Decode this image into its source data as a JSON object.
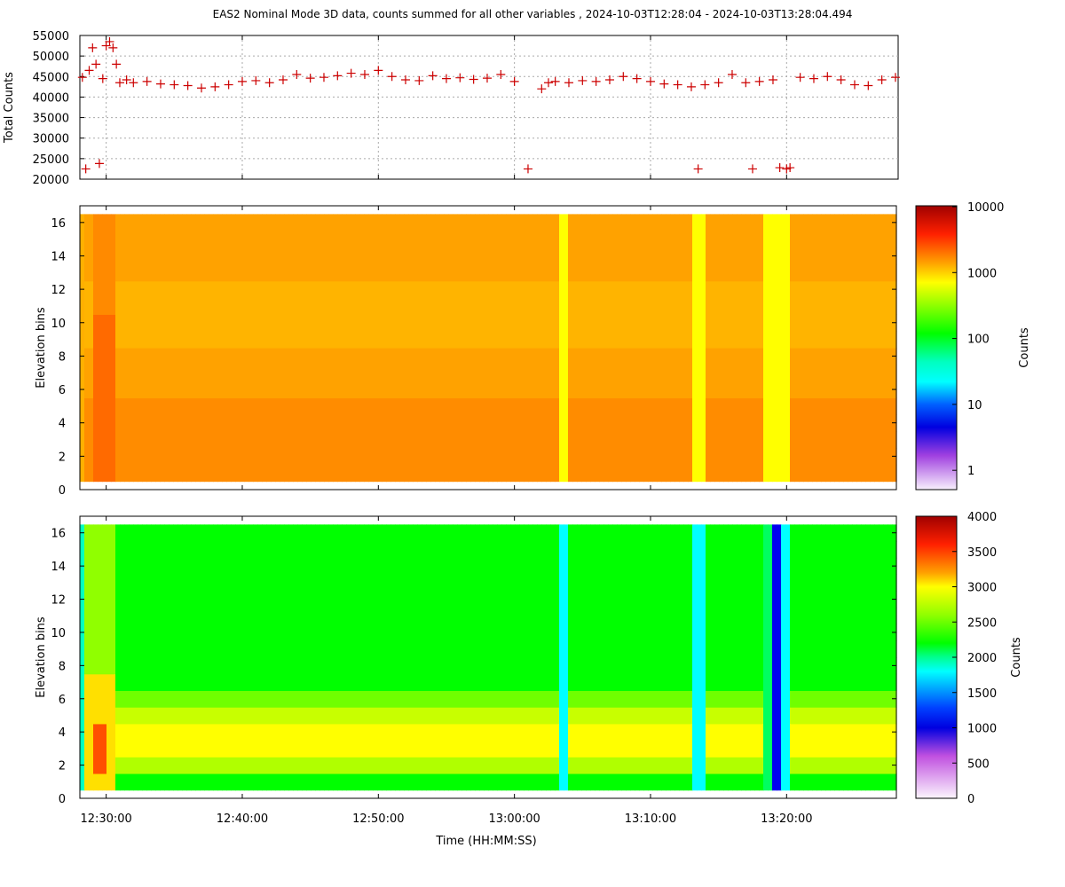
{
  "title": "EAS2  Nominal Mode 3D data, counts summed for all other variables ,  2024-10-03T12:28:04 - 2024-10-03T13:28:04.494",
  "xlabel": "Time (HH:MM:SS)",
  "x_ticks": [
    "12:30:00",
    "12:40:00",
    "12:50:00",
    "13:00:00",
    "13:10:00",
    "13:20:00"
  ],
  "chart_data": [
    {
      "type": "scatter",
      "ylabel": "Total Counts",
      "ylim": [
        20000,
        55000
      ],
      "y_ticks": [
        "55000",
        "50000",
        "45000",
        "40000",
        "35000",
        "30000",
        "25000",
        "20000"
      ],
      "grid": true,
      "marker": "+",
      "color": "#cc0000",
      "x": [
        "12:28:15",
        "12:28:30",
        "12:28:45",
        "12:29:00",
        "12:29:15",
        "12:29:30",
        "12:29:45",
        "12:30:00",
        "12:30:15",
        "12:30:30",
        "12:30:45",
        "12:31:00",
        "12:31:30",
        "12:32:00",
        "12:33:00",
        "12:34:00",
        "12:35:00",
        "12:36:00",
        "12:37:00",
        "12:38:00",
        "12:39:00",
        "12:40:00",
        "12:41:00",
        "12:42:00",
        "12:43:00",
        "12:44:00",
        "12:45:00",
        "12:46:00",
        "12:47:00",
        "12:48:00",
        "12:49:00",
        "12:50:00",
        "12:51:00",
        "12:52:00",
        "12:53:00",
        "12:54:00",
        "12:55:00",
        "12:56:00",
        "12:57:00",
        "12:58:00",
        "12:59:00",
        "13:00:00",
        "13:01:00",
        "13:02:00",
        "13:02:30",
        "13:03:00",
        "13:04:00",
        "13:05:00",
        "13:06:00",
        "13:07:00",
        "13:08:00",
        "13:09:00",
        "13:10:00",
        "13:11:00",
        "13:12:00",
        "13:13:00",
        "13:13:30",
        "13:14:00",
        "13:15:00",
        "13:16:00",
        "13:17:00",
        "13:17:30",
        "13:18:00",
        "13:19:00",
        "13:19:30",
        "13:20:00",
        "13:20:15",
        "13:21:00",
        "13:22:00",
        "13:23:00",
        "13:24:00",
        "13:25:00",
        "13:26:00",
        "13:27:00",
        "13:28:00"
      ],
      "y": [
        44800,
        22500,
        46500,
        52000,
        48000,
        23800,
        44500,
        52500,
        53500,
        52000,
        48000,
        43500,
        44200,
        43500,
        43800,
        43200,
        43000,
        42800,
        42200,
        42500,
        43000,
        43800,
        44000,
        43500,
        44200,
        45500,
        44600,
        44800,
        45200,
        45800,
        45500,
        46500,
        45000,
        44200,
        44000,
        45200,
        44500,
        44700,
        44300,
        44600,
        45500,
        43800,
        22500,
        42000,
        43500,
        43800,
        43500,
        44000,
        43800,
        44200,
        45000,
        44500,
        43800,
        43200,
        43000,
        42500,
        22500,
        43000,
        43500,
        45500,
        43500,
        22500,
        43800,
        44200,
        22800,
        22500,
        22800,
        44800,
        44500,
        45000,
        44200,
        43000,
        42800,
        44200,
        44800
      ]
    },
    {
      "type": "heatmap",
      "ylabel": "Elevation bins",
      "ylim": [
        0,
        16
      ],
      "y_ticks": [
        "16",
        "14",
        "12",
        "10",
        "8",
        "6",
        "4",
        "2",
        "0"
      ],
      "colorbar_label": "Counts",
      "colorbar_scale": "log",
      "colorbar_ticks": [
        "10000",
        "1000",
        "100",
        "10",
        "1"
      ],
      "description_values": {
        "baseline": 3000,
        "early_peak": 5000,
        "gap_columns": 1500
      }
    },
    {
      "type": "heatmap",
      "ylabel": "Elevation bins",
      "ylim": [
        0,
        16
      ],
      "y_ticks": [
        "16",
        "14",
        "12",
        "10",
        "8",
        "6",
        "4",
        "2",
        "0"
      ],
      "colorbar_label": "Counts",
      "colorbar_scale": "linear",
      "colorbar_ticks": [
        "4000",
        "3500",
        "3000",
        "2500",
        "2000",
        "1500",
        "1000",
        "500",
        "0"
      ],
      "description_values": {
        "upper_bins": 2500,
        "lower_bins": 3000,
        "peak": 3700
      }
    }
  ]
}
